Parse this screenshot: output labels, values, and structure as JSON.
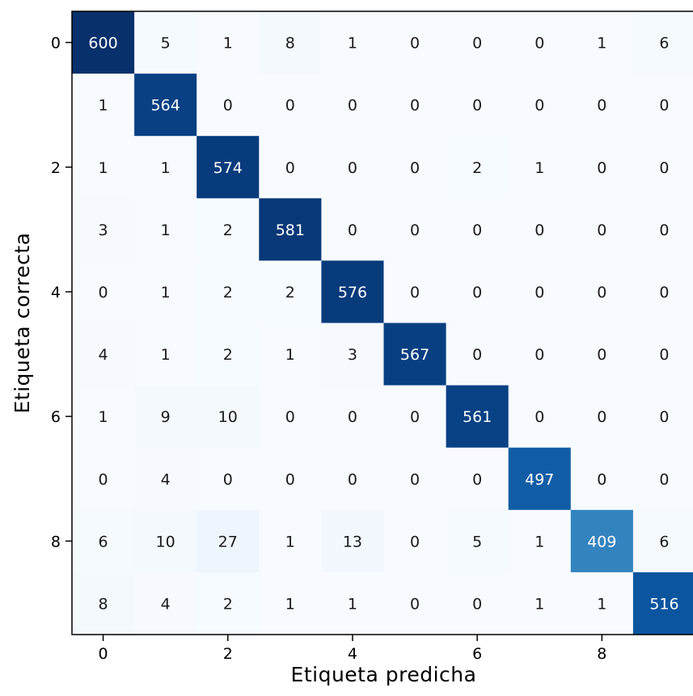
{
  "chart_data": {
    "type": "heatmap",
    "title": "",
    "xlabel": "Etiqueta predicha",
    "ylabel": "Etiqueta correcta",
    "colormap": "Blues",
    "color_min": "#f7fbff",
    "color_max": "#08306b",
    "x_categories": [
      "0",
      "1",
      "2",
      "3",
      "4",
      "5",
      "6",
      "7",
      "8",
      "9"
    ],
    "y_categories": [
      "0",
      "1",
      "2",
      "3",
      "4",
      "5",
      "6",
      "7",
      "8",
      "9"
    ],
    "x_tick_labels": [
      "0",
      "2",
      "4",
      "6",
      "8"
    ],
    "y_tick_labels": [
      "0",
      "2",
      "4",
      "6",
      "8"
    ],
    "values": [
      [
        600,
        5,
        1,
        8,
        1,
        0,
        0,
        0,
        1,
        6
      ],
      [
        1,
        564,
        0,
        0,
        0,
        0,
        0,
        0,
        0,
        0
      ],
      [
        1,
        1,
        574,
        0,
        0,
        0,
        2,
        1,
        0,
        0
      ],
      [
        3,
        1,
        2,
        581,
        0,
        0,
        0,
        0,
        0,
        0
      ],
      [
        0,
        1,
        2,
        2,
        576,
        0,
        0,
        0,
        0,
        0
      ],
      [
        4,
        1,
        2,
        1,
        3,
        567,
        0,
        0,
        0,
        0
      ],
      [
        1,
        9,
        10,
        0,
        0,
        0,
        561,
        0,
        0,
        0
      ],
      [
        0,
        4,
        0,
        0,
        0,
        0,
        0,
        497,
        0,
        0
      ],
      [
        6,
        10,
        27,
        1,
        13,
        0,
        5,
        1,
        409,
        6
      ],
      [
        8,
        4,
        2,
        1,
        1,
        0,
        0,
        1,
        1,
        516
      ]
    ],
    "value_range": [
      0,
      600
    ],
    "colorbar": false,
    "grid": false
  }
}
